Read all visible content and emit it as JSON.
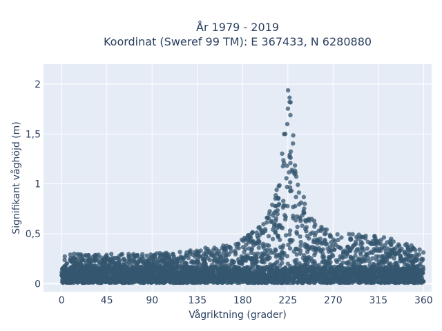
{
  "chart_data": {
    "type": "scatter",
    "title_line1": "År 1979 - 2019",
    "title_line2": "Koordinat (Sweref 99 TM): E 367433, N 6280880",
    "xlabel": "Vågriktning (grader)",
    "ylabel": "Signifikant våghöjd (m)",
    "xlim": [
      -18,
      368
    ],
    "ylim": [
      -0.08,
      2.2
    ],
    "xticks": [
      0,
      45,
      90,
      135,
      180,
      225,
      270,
      315,
      360
    ],
    "xtick_labels": [
      "0",
      "45",
      "90",
      "135",
      "180",
      "225",
      "270",
      "315",
      "360"
    ],
    "yticks": [
      0,
      0.5,
      1,
      1.5,
      2
    ],
    "ytick_labels": [
      "0",
      "0,5",
      "1",
      "1,5",
      "2"
    ],
    "grid": true,
    "marker_color": "#34566f",
    "plot_bg": "#e5ecf6",
    "envelope": {
      "x": [
        0,
        45,
        90,
        135,
        160,
        180,
        195,
        205,
        212,
        218,
        222,
        225,
        228,
        232,
        238,
        245,
        255,
        270,
        300,
        330,
        360
      ],
      "y_max": [
        0.3,
        0.3,
        0.3,
        0.35,
        0.38,
        0.45,
        0.55,
        0.7,
        0.9,
        1.2,
        1.6,
        2.1,
        1.8,
        1.3,
        0.95,
        0.75,
        0.6,
        0.5,
        0.5,
        0.45,
        0.35
      ]
    }
  }
}
